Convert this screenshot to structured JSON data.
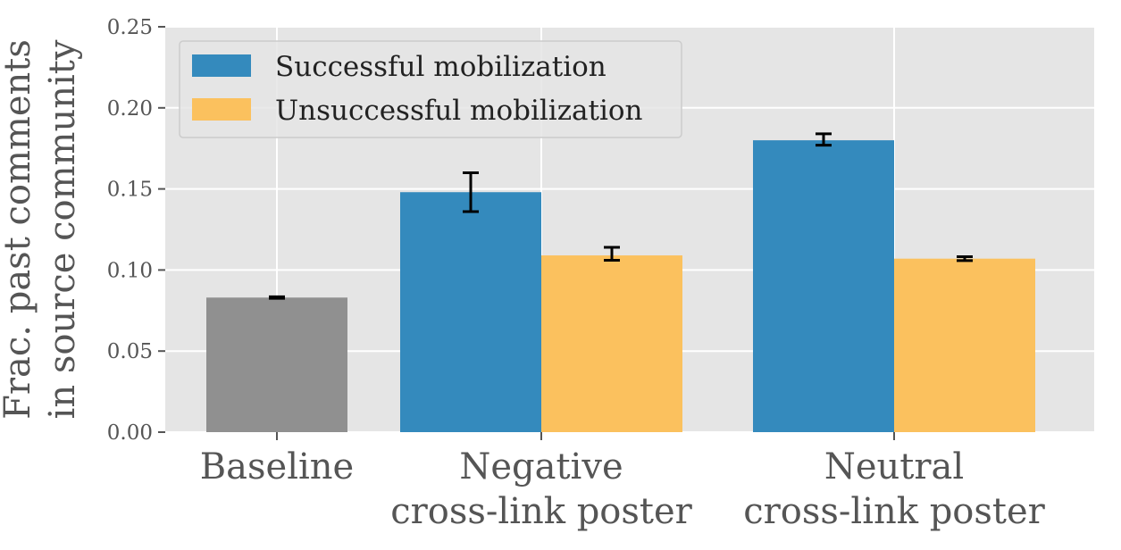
{
  "chart_data": {
    "type": "bar",
    "title": "",
    "ylabel_lines": [
      "Frac. past comments",
      "in source community"
    ],
    "xlabel": "",
    "ylim": [
      0,
      0.25
    ],
    "yticks": [
      "0.00",
      "0.05",
      "0.10",
      "0.15",
      "0.20",
      "0.25"
    ],
    "ytick_values": [
      0,
      0.05,
      0.1,
      0.15,
      0.2,
      0.25
    ],
    "grid": true,
    "legend_position": "top-left",
    "colors": {
      "background": "#e5e5e5",
      "grid": "#ffffff",
      "baseline": "#909090",
      "successful": "#348abd",
      "unsuccessful": "#fbc15e",
      "error_bar": "#000000"
    },
    "groups": [
      {
        "label_lines": [
          "Baseline"
        ],
        "bars": [
          {
            "series": "baseline",
            "value": 0.083,
            "err_low": 0.0825,
            "err_high": 0.0835
          }
        ]
      },
      {
        "label_lines": [
          "Negative",
          "cross-link poster"
        ],
        "bars": [
          {
            "series": "successful",
            "value": 0.148,
            "err_low": 0.136,
            "err_high": 0.16
          },
          {
            "series": "unsuccessful",
            "value": 0.109,
            "err_low": 0.106,
            "err_high": 0.114
          }
        ]
      },
      {
        "label_lines": [
          "Neutral",
          "cross-link poster"
        ],
        "bars": [
          {
            "series": "successful",
            "value": 0.18,
            "err_low": 0.177,
            "err_high": 0.184
          },
          {
            "series": "unsuccessful",
            "value": 0.107,
            "err_low": 0.1058,
            "err_high": 0.1082
          }
        ]
      }
    ],
    "legend": [
      {
        "series": "successful",
        "name": "Successful mobilization"
      },
      {
        "series": "unsuccessful",
        "name": "Unsuccessful mobilization"
      }
    ]
  }
}
